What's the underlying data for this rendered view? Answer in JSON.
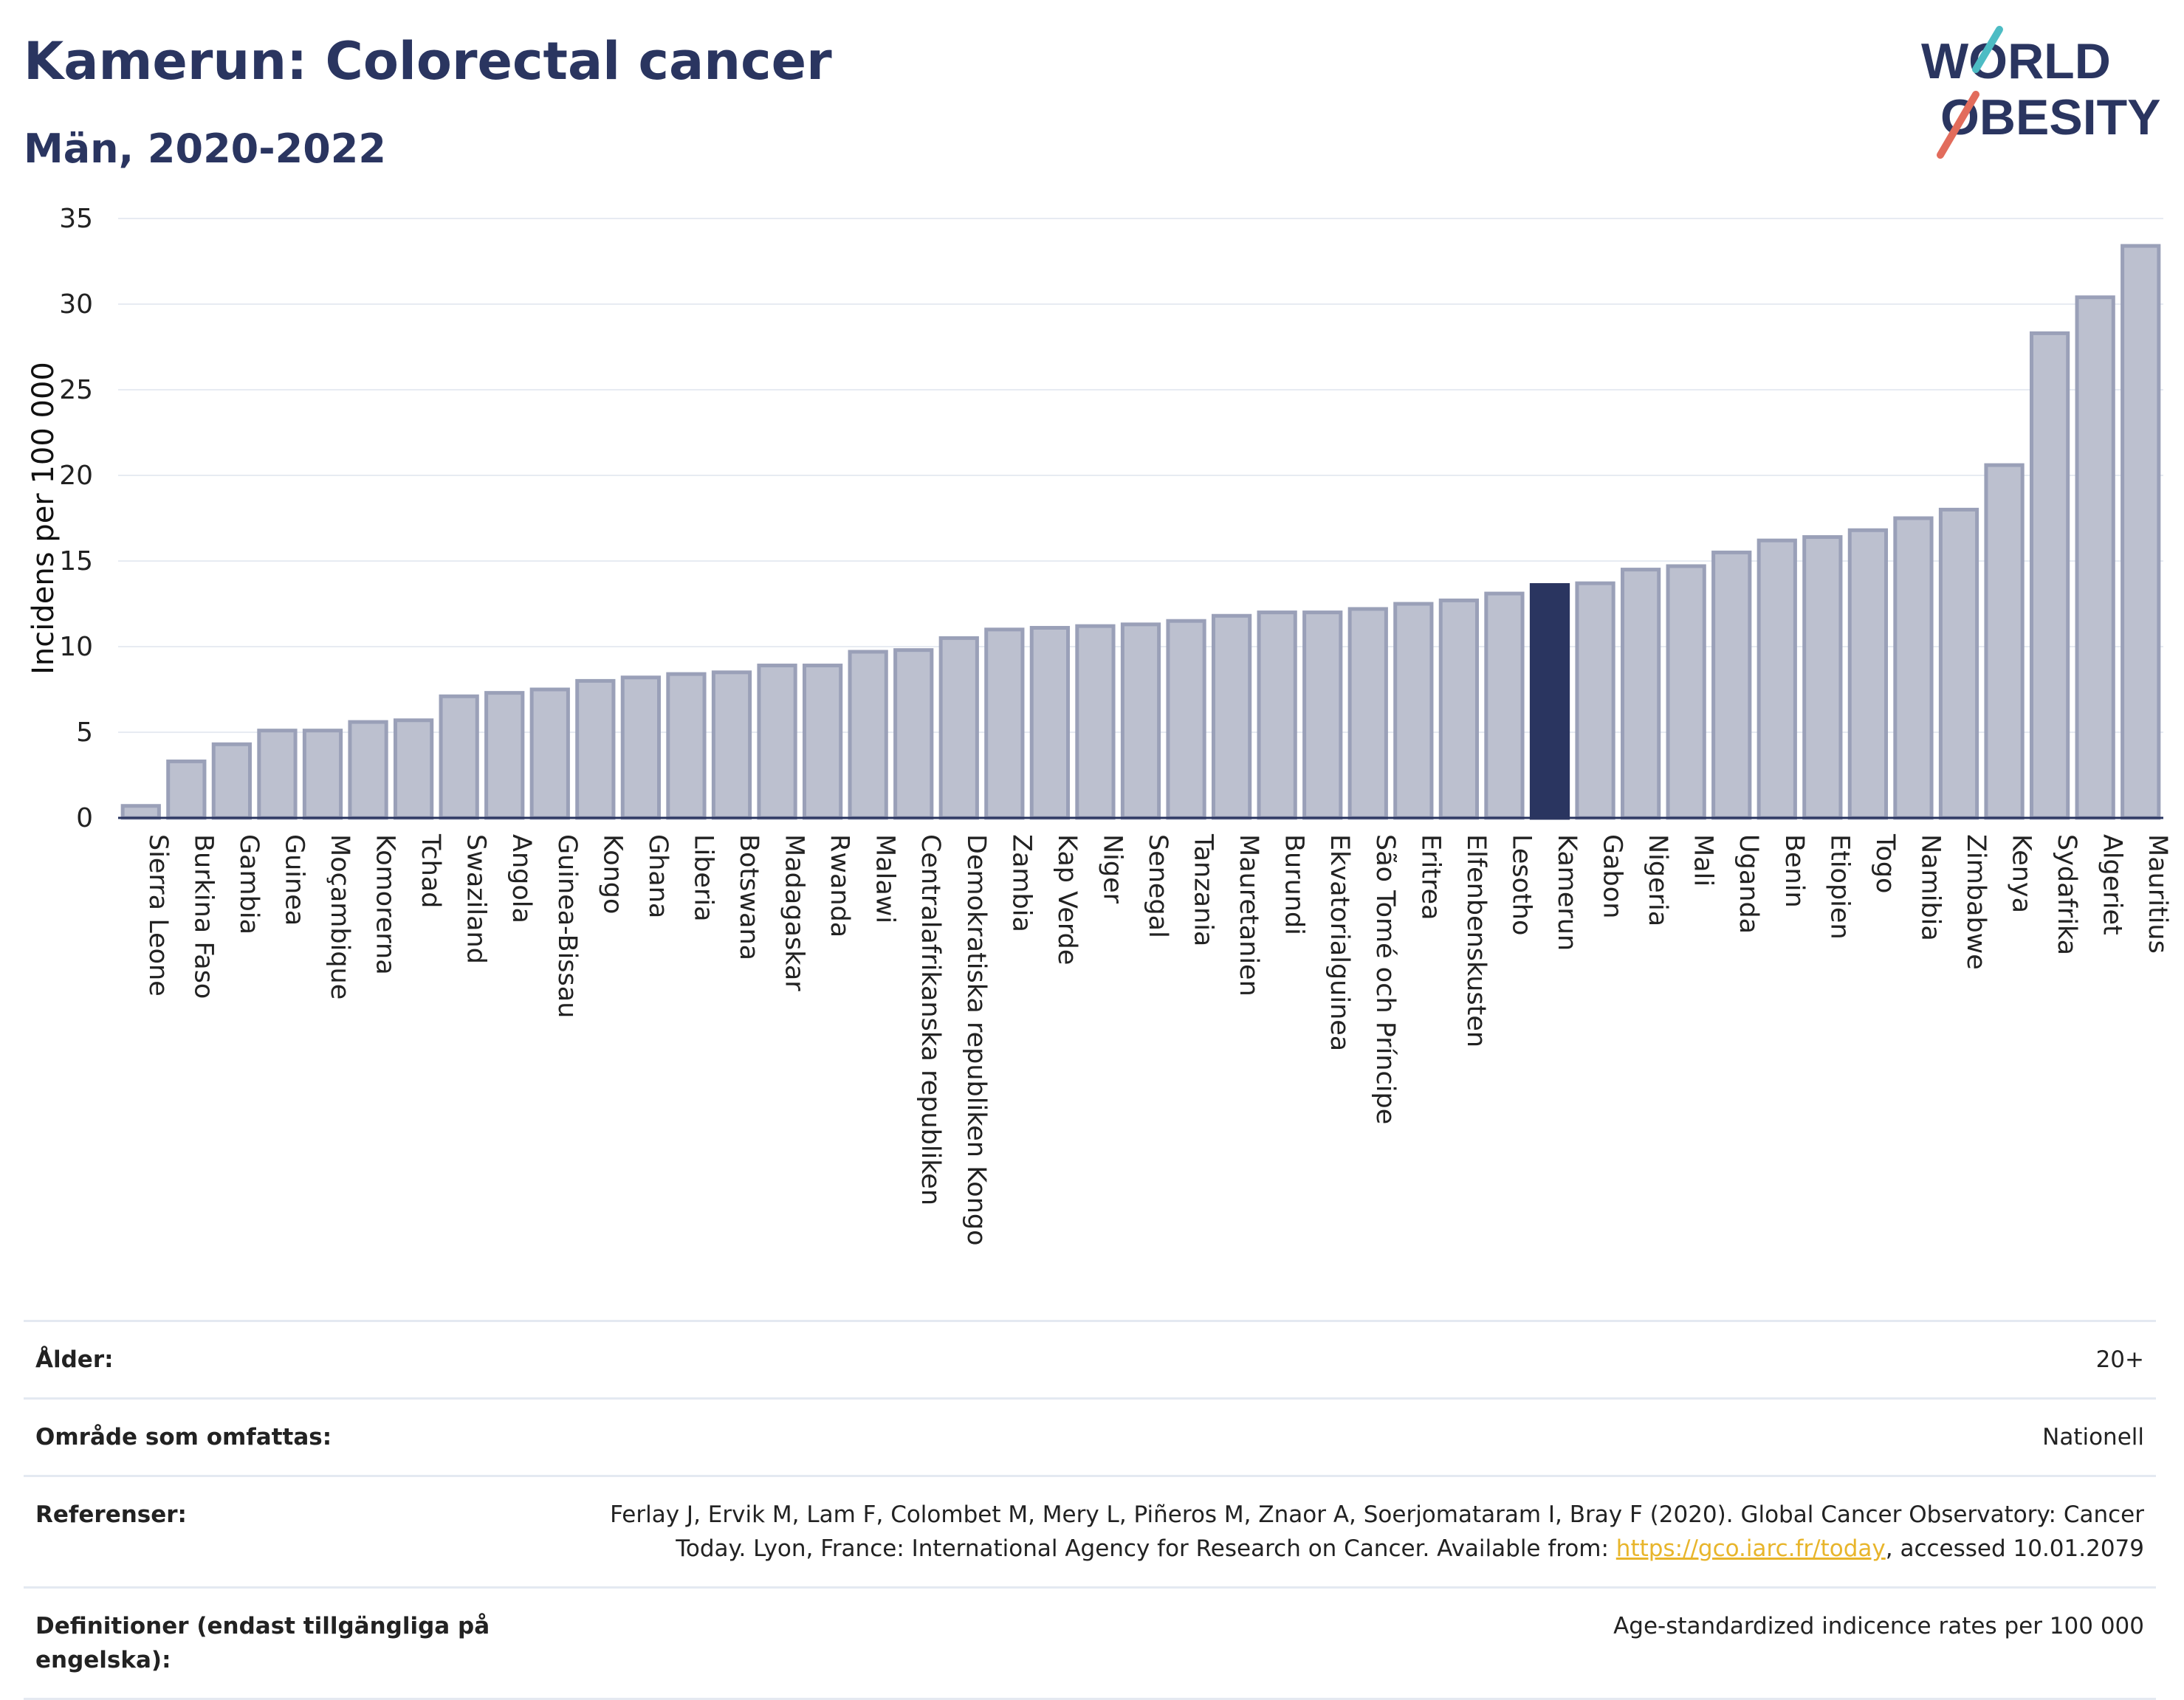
{
  "header": {
    "title": "Kamerun: Colorectal cancer",
    "subtitle": "Män, 2020-2022"
  },
  "logo": {
    "line1": "WORLD",
    "line2": "OBESITY",
    "accent_colors": [
      "#4dbcc4",
      "#e26c5c"
    ],
    "text_color": "#2a3560"
  },
  "colors": {
    "highlight": "#2a3560",
    "bar": "#bcc0cf",
    "bar_border": "#9aa0b8",
    "grid": "#e7ebf2"
  },
  "chart_data": {
    "type": "bar",
    "title": "Kamerun: Colorectal cancer",
    "subtitle": "Män, 2020-2022",
    "xlabel": "",
    "ylabel": "Incidens per 100 000",
    "ylim": [
      0,
      35
    ],
    "yticks": [
      0,
      5,
      10,
      15,
      20,
      25,
      30,
      35
    ],
    "grid": true,
    "highlight": "Kamerun",
    "categories": [
      "Sierra Leone",
      "Burkina Faso",
      "Gambia",
      "Guinea",
      "Moçambique",
      "Komorerna",
      "Tchad",
      "Swaziland",
      "Angola",
      "Guinea-Bissau",
      "Kongo",
      "Ghana",
      "Liberia",
      "Botswana",
      "Madagaskar",
      "Rwanda",
      "Malawi",
      "Centralafrikanska republiken",
      "Demokratiska republiken Kongo",
      "Zambia",
      "Kap Verde",
      "Niger",
      "Senegal",
      "Tanzania",
      "Mauretanien",
      "Burundi",
      "Ekvatorialguinea",
      "São Tomé och Príncipe",
      "Eritrea",
      "Elfenbenskusten",
      "Lesotho",
      "Kamerun",
      "Gabon",
      "Nigeria",
      "Mali",
      "Uganda",
      "Benin",
      "Etiopien",
      "Togo",
      "Namibia",
      "Zimbabwe",
      "Kenya",
      "Sydafrika",
      "Algeriet",
      "Mauritius"
    ],
    "values": [
      0.7,
      3.3,
      4.3,
      5.1,
      5.1,
      5.6,
      5.7,
      7.1,
      7.3,
      7.5,
      8.0,
      8.2,
      8.4,
      8.5,
      8.9,
      8.9,
      9.7,
      9.8,
      10.5,
      11.0,
      11.1,
      11.2,
      11.3,
      11.5,
      11.8,
      12.0,
      12.0,
      12.2,
      12.5,
      12.7,
      13.1,
      13.6,
      13.7,
      14.5,
      14.7,
      15.5,
      16.2,
      16.4,
      16.8,
      17.5,
      18.0,
      20.6,
      28.3,
      30.4,
      33.4
    ]
  },
  "info": {
    "age_label": "Ålder:",
    "age_value": "20+",
    "area_label": "Område som omfattas:",
    "area_value": "Nationell",
    "ref_label": "Referenser:",
    "ref_text": "Ferlay J, Ervik M, Lam F, Colombet M, Mery L, Piñeros M, Znaor A, Soerjomataram I, Bray F (2020). Global Cancer Observatory: Cancer Today. Lyon, France: International Agency for Research on Cancer. Available from: ",
    "ref_link": "https://gco.iarc.fr/today",
    "ref_suffix": ", accessed 10.01.2079",
    "def_label": "Definitioner (endast tillgängliga på engelska):",
    "def_value": "Age-standardized indicence rates per 100 000"
  }
}
